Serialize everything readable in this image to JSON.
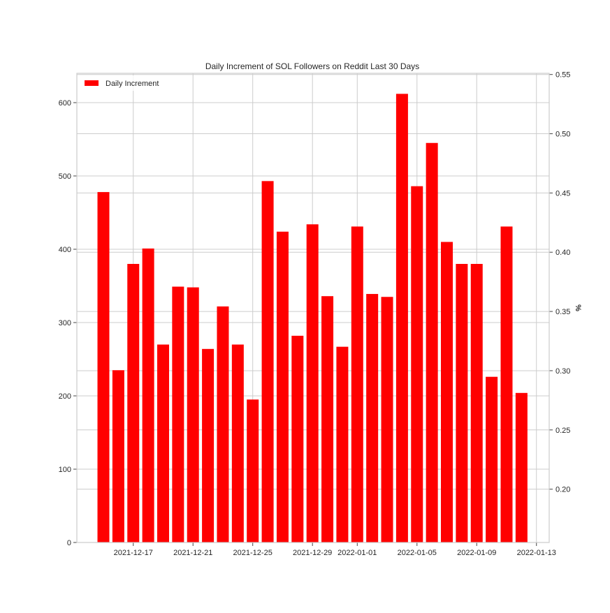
{
  "chart_data": {
    "type": "bar",
    "title": "Daily Increment of SOL Followers on Reddit Last 30 Days",
    "xlabel": "",
    "ylabel": "",
    "y2label": "%",
    "legend": {
      "entries": [
        "Daily Increment"
      ],
      "placement": "top-left"
    },
    "grid": true,
    "bar_color": "#ff0000",
    "grid_color": "#cccccc",
    "axes_color": "#cccccc",
    "x": [
      "2021-12-15",
      "2021-12-16",
      "2021-12-17",
      "2021-12-18",
      "2021-12-19",
      "2021-12-20",
      "2021-12-21",
      "2021-12-22",
      "2021-12-23",
      "2021-12-24",
      "2021-12-25",
      "2021-12-26",
      "2021-12-27",
      "2021-12-28",
      "2021-12-29",
      "2021-12-30",
      "2021-12-31",
      "2022-01-01",
      "2022-01-02",
      "2022-01-03",
      "2022-01-04",
      "2022-01-05",
      "2022-01-06",
      "2022-01-07",
      "2022-01-08",
      "2022-01-09",
      "2022-01-10",
      "2022-01-11",
      "2022-01-12",
      "2022-01-13"
    ],
    "series": [
      {
        "name": "Daily Increment",
        "values": [
          478,
          235,
          380,
          401,
          270,
          349,
          348,
          264,
          322,
          270,
          195,
          493,
          424,
          282,
          434,
          336,
          267,
          431,
          339,
          335,
          612,
          486,
          545,
          410,
          380,
          380,
          226,
          431,
          204,
          0
        ]
      }
    ],
    "ylim": [
      0,
      640
    ],
    "y_ticks": [
      0,
      100,
      200,
      300,
      400,
      500,
      600
    ],
    "y2lim": [
      0.155,
      0.551
    ],
    "y2_ticks": [
      "0.20",
      "0.25",
      "0.30",
      "0.35",
      "0.40",
      "0.45",
      "0.50",
      "0.55"
    ],
    "x_tick_labels": [
      "2021-12-17",
      "2021-12-21",
      "2021-12-25",
      "2021-12-29",
      "2022-01-01",
      "2022-01-05",
      "2022-01-09",
      "2022-01-13"
    ]
  }
}
